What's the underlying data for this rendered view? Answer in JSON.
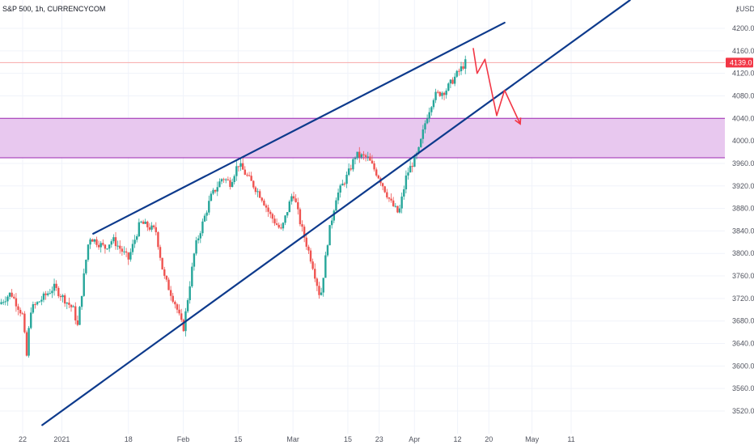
{
  "chart_data": {
    "type": "candlestick",
    "title": "S&P 500, 1h, CURRENCYCOM",
    "currency_label": "USD",
    "colors": {
      "up": "#26a69a",
      "down": "#ef5350",
      "trendline": "#0d3a8c",
      "projection": "#f23645",
      "zone_fill": "#e8c8ef",
      "zone_border": "#9c27b0",
      "price_line": "#f7a8a8",
      "price_badge": "#f23645"
    },
    "ylim": [
      3490,
      4240
    ],
    "y_ticks": [
      3520,
      3560,
      3600,
      3640,
      3680,
      3720,
      3760,
      3800,
      3840,
      3880,
      3920,
      3960,
      4000,
      4040,
      4080,
      4120,
      4160,
      4200
    ],
    "y_tick_labels": [
      "3520.0",
      "3560.0",
      "3600.0",
      "3640.0",
      "3680.0",
      "3720.0",
      "3760.0",
      "3800.0",
      "3840.0",
      "3880.0",
      "3920.0",
      "3960.0",
      "4000.0",
      "4040.0",
      "4080.0",
      "4120.0",
      "4160.0",
      "4200.0"
    ],
    "x_labels": [
      "22",
      "2021",
      "18",
      "Feb",
      "15",
      "Mar",
      "15",
      "23",
      "Apr",
      "12",
      "20",
      "May",
      "11"
    ],
    "last_price": 4139,
    "last_price_label": "4139.0",
    "zone": [
      3970,
      4040
    ],
    "price_path": [
      [
        "2020-12-16",
        3710
      ],
      [
        "2020-12-19",
        3730
      ],
      [
        "2020-12-22",
        3690
      ],
      [
        "2020-12-23",
        3615
      ],
      [
        "2020-12-24",
        3700
      ],
      [
        "2020-12-30",
        3740
      ],
      [
        "2021-01-04",
        3700
      ],
      [
        "2021-01-05",
        3670
      ],
      [
        "2021-01-07",
        3780
      ],
      [
        "2021-01-08",
        3830
      ],
      [
        "2021-01-12",
        3810
      ],
      [
        "2021-01-14",
        3825
      ],
      [
        "2021-01-18",
        3790
      ],
      [
        "2021-01-21",
        3855
      ],
      [
        "2021-01-25",
        3840
      ],
      [
        "2021-01-27",
        3760
      ],
      [
        "2021-01-30",
        3710
      ],
      [
        "2021-02-01",
        3665
      ],
      [
        "2021-02-04",
        3810
      ],
      [
        "2021-02-08",
        3900
      ],
      [
        "2021-02-11",
        3935
      ],
      [
        "2021-02-13",
        3925
      ],
      [
        "2021-02-15",
        3960
      ],
      [
        "2021-02-19",
        3920
      ],
      [
        "2021-02-21",
        3900
      ],
      [
        "2021-02-23",
        3870
      ],
      [
        "2021-02-26",
        3840
      ],
      [
        "2021-03-01",
        3910
      ],
      [
        "2021-03-03",
        3850
      ],
      [
        "2021-03-06",
        3780
      ],
      [
        "2021-03-08",
        3720
      ],
      [
        "2021-03-10",
        3830
      ],
      [
        "2021-03-12",
        3900
      ],
      [
        "2021-03-15",
        3940
      ],
      [
        "2021-03-17",
        3975
      ],
      [
        "2021-03-20",
        3970
      ],
      [
        "2021-03-23",
        3935
      ],
      [
        "2021-03-26",
        3890
      ],
      [
        "2021-03-28",
        3870
      ],
      [
        "2021-03-30",
        3940
      ],
      [
        "2021-04-02",
        3980
      ],
      [
        "2021-04-04",
        4040
      ],
      [
        "2021-04-06",
        4080
      ],
      [
        "2021-04-09",
        4090
      ],
      [
        "2021-04-12",
        4120
      ],
      [
        "2021-04-14",
        4139
      ]
    ],
    "candle_count": 220,
    "resistance_line": [
      [
        "2021-01-09",
        3835
      ],
      [
        "2021-04-24",
        4210
      ]
    ],
    "support_line": [
      [
        "2020-12-27",
        3495
      ],
      [
        "2021-05-26",
        4250
      ]
    ],
    "projection_path": [
      [
        "2021-04-16",
        4165
      ],
      [
        "2021-04-17",
        4120
      ],
      [
        "2021-04-19",
        4145
      ],
      [
        "2021-04-22",
        4045
      ],
      [
        "2021-04-24",
        4090
      ],
      [
        "2021-04-28",
        4030
      ]
    ]
  }
}
